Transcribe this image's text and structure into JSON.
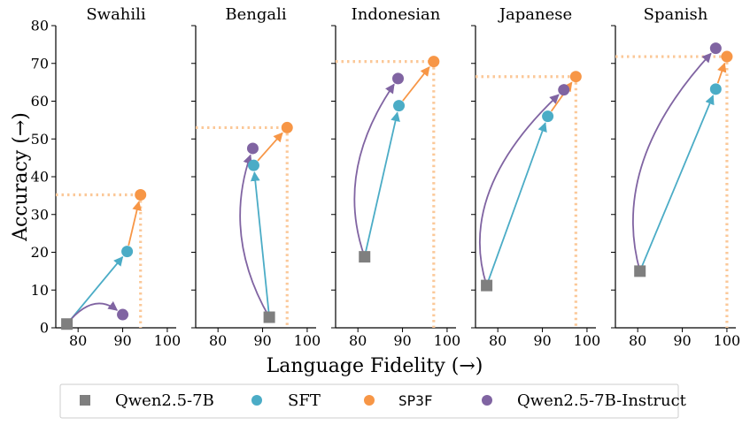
{
  "chart_data": {
    "type": "scatter",
    "xlabel": "Language Fidelity (→)",
    "ylabel": "Accuracy (→)",
    "xlim": [
      75,
      102
    ],
    "ylim": [
      0,
      80
    ],
    "x_ticks": [
      80,
      90,
      100
    ],
    "y_ticks": [
      0,
      10,
      20,
      30,
      40,
      50,
      60,
      70,
      80
    ],
    "grid": false,
    "legend_position": "bottom",
    "colors": {
      "Qwen2.5-7B": "#7f7f7f",
      "SFT": "#4bacc6",
      "SP3F": "#f79646",
      "Qwen2.5-7B-Instruct": "#8064a2",
      "reference_line": "#fbc898"
    },
    "legend": [
      {
        "name": "Qwen2.5-7B",
        "marker": "square"
      },
      {
        "name": "SFT",
        "marker": "circle"
      },
      {
        "name": "SP3F",
        "marker": "circle",
        "monospace": true
      },
      {
        "name": "Qwen2.5-7B-Instruct",
        "marker": "circle"
      }
    ],
    "panels": [
      {
        "title": "Swahili",
        "points": {
          "Qwen2.5-7B": [
            77.5,
            1.0
          ],
          "SFT": [
            91.0,
            20.2
          ],
          "SP3F": [
            94.0,
            35.2
          ],
          "Qwen2.5-7B-Instruct": [
            90.0,
            3.5
          ]
        },
        "instruct_curve": "arc"
      },
      {
        "title": "Bengali",
        "points": {
          "Qwen2.5-7B": [
            91.5,
            2.8
          ],
          "SFT": [
            88.0,
            43.0
          ],
          "SP3F": [
            95.5,
            53.0
          ],
          "Qwen2.5-7B-Instruct": [
            87.8,
            47.5
          ]
        },
        "instruct_curve": "bulge-left"
      },
      {
        "title": "Indonesian",
        "points": {
          "Qwen2.5-7B": [
            81.5,
            18.8
          ],
          "SFT": [
            89.2,
            58.8
          ],
          "SP3F": [
            97.0,
            70.5
          ],
          "Qwen2.5-7B-Instruct": [
            89.0,
            66.0
          ]
        },
        "instruct_curve": "bulge-left"
      },
      {
        "title": "Japanese",
        "points": {
          "Qwen2.5-7B": [
            77.5,
            11.2
          ],
          "SFT": [
            91.2,
            56.0
          ],
          "SP3F": [
            97.5,
            66.5
          ],
          "Qwen2.5-7B-Instruct": [
            94.8,
            63.0
          ]
        },
        "instruct_curve": "bulge-left"
      },
      {
        "title": "Spanish",
        "points": {
          "Qwen2.5-7B": [
            80.5,
            15.0
          ],
          "SFT": [
            97.5,
            63.2
          ],
          "SP3F": [
            100.0,
            71.8
          ],
          "Qwen2.5-7B-Instruct": [
            97.5,
            74.0
          ]
        },
        "instruct_curve": "bulge-left"
      }
    ]
  }
}
